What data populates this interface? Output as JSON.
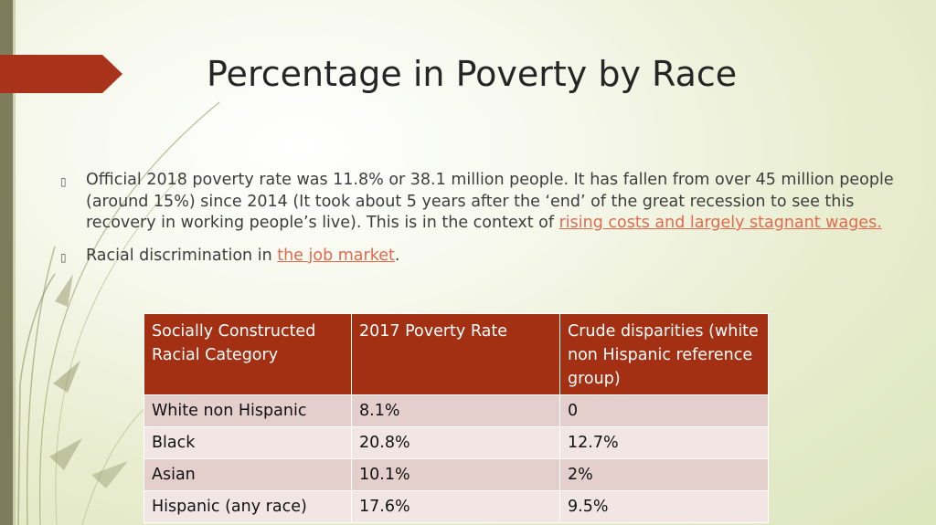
{
  "title": "Percentage in Poverty by Race",
  "bullets": [
    {
      "text": "Official 2018 poverty rate was 11.8% or 38.1 million people.  It has fallen from over 45 million people (around 15%) since 2014  (It took about 5 years after the ‘end’ of the great recession to see this recovery in working people’s live). This is in the context of ",
      "link": "rising costs and largely stagnant wages.",
      "after": ""
    },
    {
      "text": "Racial discrimination in ",
      "link": "the job market",
      "after": "."
    }
  ],
  "table": {
    "headers": [
      "Socially Constructed Racial Category",
      "2017 Poverty Rate",
      "Crude disparities (white non Hispanic reference group)"
    ],
    "rows": [
      [
        "White non Hispanic",
        "8.1%",
        "0"
      ],
      [
        "Black",
        "20.8%",
        "12.7%"
      ],
      [
        "Asian",
        "10.1%",
        "2%"
      ],
      [
        "Hispanic (any race)",
        "17.6%",
        "9.5%"
      ]
    ]
  },
  "colors": {
    "accent": "#a33012",
    "link": "#e06a4b",
    "row_odd": "#e5cfcd",
    "row_even": "#f2e6e5"
  }
}
